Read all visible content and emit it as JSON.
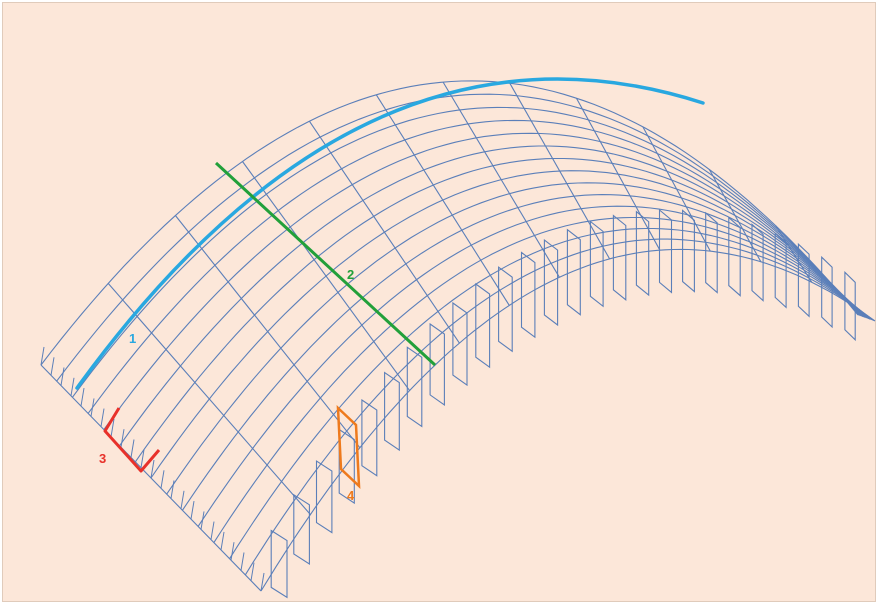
{
  "diagram": {
    "colors": {
      "background": "#fce7d9",
      "mesh": "#5b7fb9",
      "curve_1": "#29a8e0",
      "line_2": "#22a03a",
      "marker_3": "#e8312a",
      "marker_4": "#ee7a1d"
    },
    "labels": {
      "one": "1",
      "two": "2",
      "three": "3",
      "four": "4"
    }
  }
}
